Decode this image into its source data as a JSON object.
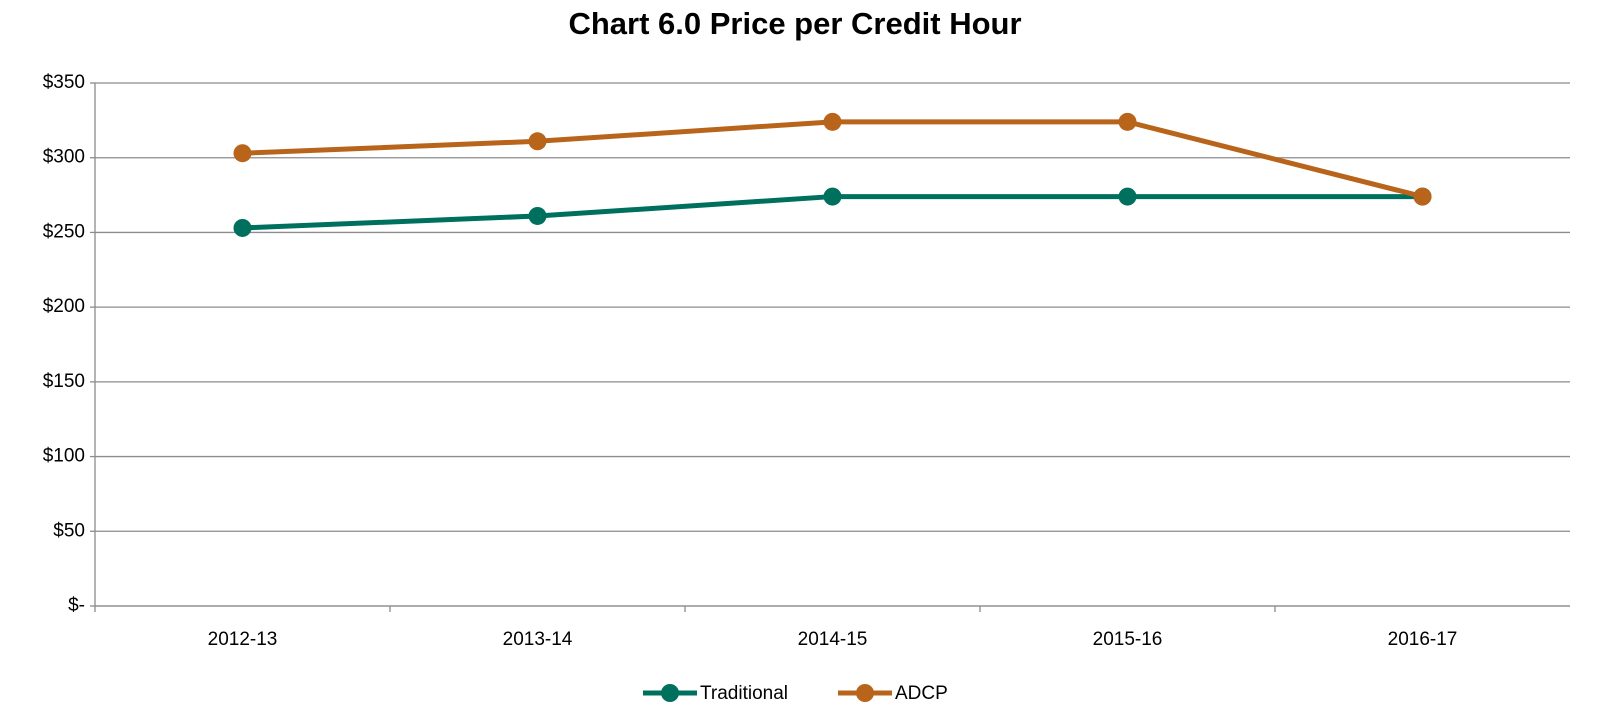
{
  "chart_data": {
    "type": "line",
    "title": "Chart 6.0 Price per Credit Hour",
    "categories": [
      "2012-13",
      "2013-14",
      "2014-15",
      "2015-16",
      "2016-17"
    ],
    "series": [
      {
        "name": "Traditional",
        "color": "#00705e",
        "values": [
          253,
          261,
          274,
          274,
          274
        ]
      },
      {
        "name": "ADCP",
        "color": "#b8651b",
        "values": [
          303,
          311,
          324,
          324,
          274
        ]
      }
    ],
    "ylim": [
      0,
      350
    ],
    "yticks": [
      {
        "value": 0,
        "label": "$-"
      },
      {
        "value": 50,
        "label": "$50"
      },
      {
        "value": 100,
        "label": "$100"
      },
      {
        "value": 150,
        "label": "$150"
      },
      {
        "value": 200,
        "label": "$200"
      },
      {
        "value": 250,
        "label": "$250"
      },
      {
        "value": 300,
        "label": "$300"
      },
      {
        "value": 350,
        "label": "$350"
      }
    ],
    "grid": true,
    "legend": "bottom"
  }
}
